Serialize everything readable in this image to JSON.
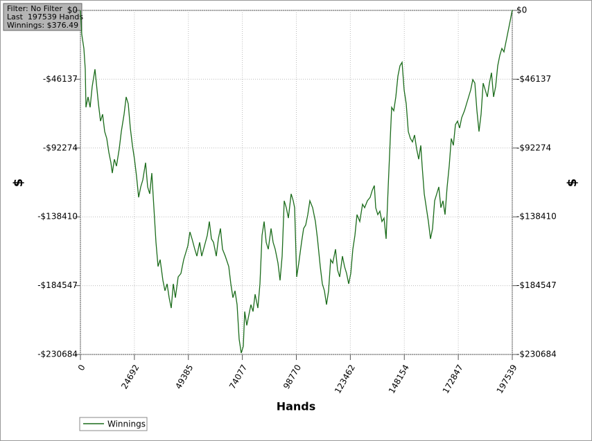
{
  "chart_data": {
    "type": "line",
    "info_box": [
      "Filter: No Filter",
      "Last  197539 Hands",
      "Winnings: $376.49"
    ],
    "xlabel": "Hands",
    "ylabel": "$",
    "xlim": [
      0,
      197539
    ],
    "xticks": [
      0,
      24692,
      49385,
      74077,
      98770,
      123462,
      148154,
      172847,
      197539
    ],
    "ylim": [
      -230684,
      0
    ],
    "yticks": [
      {
        "value": 0,
        "label": "$0"
      },
      {
        "value": -46137,
        "label": "-$46137"
      },
      {
        "value": -92274,
        "label": "-$92274"
      },
      {
        "value": -138410,
        "label": "-$138410"
      },
      {
        "value": -184547,
        "label": "-$184547"
      },
      {
        "value": -230684,
        "label": "-$230684"
      }
    ],
    "grid": true,
    "legend": "bottom-left",
    "x": [
      0,
      634,
      1585,
      2220,
      2537,
      3488,
      4439,
      5390,
      6659,
      7293,
      8244,
      9195,
      10147,
      11098,
      12049,
      13000,
      13952,
      14586,
      15537,
      16488,
      17756,
      18708,
      19976,
      20927,
      21879,
      22830,
      23781,
      24732,
      25683,
      26635,
      27586,
      28537,
      29806,
      30757,
      31708,
      32659,
      33610,
      34562,
      35513,
      36464,
      37733,
      38684,
      39635,
      40586,
      41537,
      42489,
      43440,
      44709,
      45977,
      47245,
      48196,
      49147,
      50099,
      51050,
      52318,
      53270,
      54538,
      55489,
      56757,
      58026,
      58977,
      59928,
      60879,
      62148,
      63099,
      64050,
      65001,
      66270,
      67855,
      68806,
      69758,
      70709,
      71660,
      72611,
      73563,
      74514,
      75148,
      76099,
      77050,
      78002,
      78953,
      79904,
      81172,
      82124,
      83075,
      84026,
      84977,
      85929,
      87197,
      88148,
      89099,
      90368,
      91319,
      92270,
      93222,
      94173,
      95124,
      96392,
      97344,
      97978,
      98929,
      99880,
      101149,
      102100,
      103051,
      104002,
      104953,
      106222,
      107490,
      108441,
      109710,
      110661,
      111612,
      112563,
      113515,
      114466,
      115417,
      116685,
      117637,
      118588,
      119856,
      120807,
      121759,
      122710,
      123661,
      124612,
      125563,
      126515,
      127783,
      129052,
      130003,
      131271,
      132539,
      133491,
      134442,
      135076,
      136027,
      136979,
      137930,
      138881,
      139832,
      140784,
      141735,
      142369,
      143320,
      144271,
      145223,
      146174,
      147125,
      148076,
      149028,
      149979,
      150930,
      151881,
      152833,
      153784,
      154735,
      155686,
      156320,
      157270,
      158223,
      159174,
      160125,
      161077,
      162028,
      162979,
      163930,
      164882,
      165833,
      166784,
      167735,
      168687,
      169638,
      170589,
      171540,
      172492,
      173443,
      174394,
      175662,
      176614,
      177565,
      178516,
      179467,
      180419,
      181370,
      182321,
      183272,
      184223,
      185175,
      186126,
      187077,
      188028,
      188980,
      189931,
      190882,
      191833,
      192785,
      193736,
      194687,
      195638,
      196590,
      197539
    ],
    "series": [
      {
        "name": "Winnings",
        "color": "#1a6b1a",
        "values": [
          0,
          -16245,
          -25528,
          -39453,
          -64981,
          -58019,
          -64981,
          -51057,
          -39453,
          -48736,
          -62660,
          -74264,
          -69623,
          -81226,
          -85868,
          -95151,
          -102113,
          -109075,
          -99792,
          -104434,
          -92830,
          -81226,
          -69623,
          -58019,
          -62660,
          -78906,
          -90509,
          -99792,
          -111396,
          -125320,
          -118358,
          -113717,
          -102113,
          -118358,
          -123000,
          -109075,
          -132283,
          -155490,
          -171736,
          -167094,
          -181019,
          -187981,
          -183339,
          -192622,
          -199585,
          -183339,
          -192622,
          -178698,
          -176377,
          -167094,
          -162453,
          -157811,
          -148528,
          -153170,
          -160132,
          -164773,
          -155490,
          -164773,
          -157811,
          -150849,
          -141566,
          -153170,
          -155490,
          -164773,
          -153170,
          -146207,
          -160132,
          -164773,
          -171736,
          -183339,
          -192622,
          -187981,
          -197264,
          -220471,
          -229754,
          -225113,
          -201905,
          -211188,
          -204226,
          -197264,
          -201905,
          -190302,
          -199585,
          -183339,
          -150849,
          -141566,
          -155490,
          -160132,
          -146207,
          -155490,
          -160132,
          -169415,
          -181019,
          -164773,
          -127641,
          -132283,
          -139245,
          -123000,
          -127641,
          -132283,
          -178698,
          -169415,
          -155490,
          -146207,
          -143887,
          -136924,
          -127641,
          -132283,
          -141566,
          -153170,
          -171736,
          -183339,
          -187981,
          -197264,
          -187981,
          -167094,
          -169415,
          -160132,
          -174056,
          -178698,
          -164773,
          -171736,
          -176377,
          -183339,
          -176377,
          -160132,
          -150849,
          -136924,
          -141566,
          -129962,
          -132283,
          -127641,
          -125320,
          -120679,
          -117430,
          -132283,
          -136924,
          -134604,
          -141566,
          -139245,
          -153170,
          -118358,
          -85868,
          -64981,
          -67302,
          -58019,
          -44094,
          -37132,
          -34811,
          -53377,
          -62660,
          -81226,
          -85868,
          -88189,
          -83547,
          -92830,
          -99792,
          -90509,
          -104434,
          -123000,
          -132283,
          -141566,
          -153170,
          -146207,
          -127641,
          -123000,
          -118358,
          -132283,
          -127641,
          -136924,
          -118358,
          -104434,
          -85868,
          -90509,
          -76585,
          -74264,
          -78906,
          -71943,
          -67302,
          -62660,
          -58019,
          -53377,
          -46415,
          -48736,
          -67302,
          -81226,
          -69623,
          -48736,
          -53377,
          -58019,
          -48736,
          -41774,
          -58019,
          -51057,
          -37132,
          -30170,
          -25528,
          -27849,
          -20887,
          -13924,
          -6962,
          376
        ]
      }
    ]
  }
}
